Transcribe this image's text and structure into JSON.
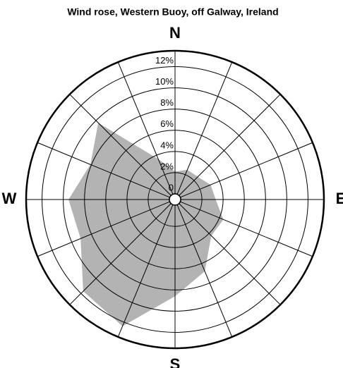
{
  "chart_data": {
    "type": "polar_area",
    "title": "Wind rose, Western Buoy, off Galway, Ireland",
    "categories": [
      "N",
      null,
      null,
      null,
      "E",
      null,
      null,
      null,
      "S",
      null,
      null,
      null,
      "W",
      null,
      null,
      null
    ],
    "values": [
      2.1,
      2.5,
      2.5,
      3.1,
      3.3,
      4.4,
      4.3,
      6.8,
      8.6,
      12.4,
      11.7,
      9.1,
      9.5,
      8.1,
      9.7,
      3.6
    ],
    "color": "#b3b3b3",
    "rlim": [
      0,
      13.5
    ],
    "rticks": [
      0,
      {
        "value": 2,
        "label": "2%"
      },
      {
        "value": 4,
        "label": "4%"
      },
      {
        "value": 6,
        "label": "6%"
      },
      {
        "value": 8,
        "label": "8%"
      },
      {
        "value": 10,
        "label": "10%"
      },
      {
        "value": 12,
        "label": "12%"
      }
    ],
    "grid": true
  }
}
